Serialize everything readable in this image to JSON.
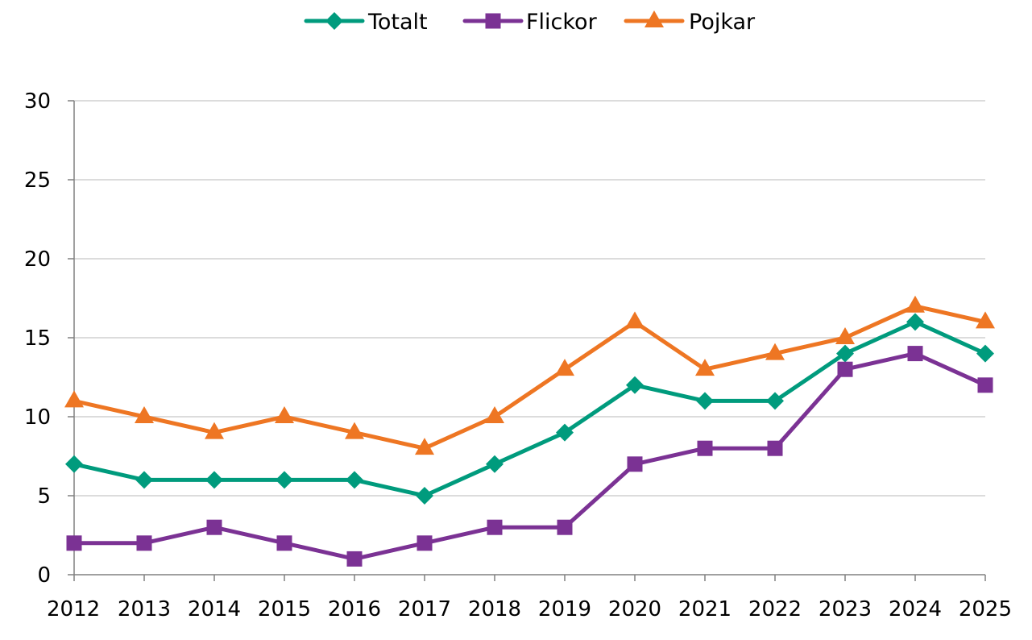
{
  "chart_data": {
    "type": "line",
    "title": "",
    "xlabel": "",
    "ylabel": "",
    "categories": [
      "2012",
      "2013",
      "2014",
      "2015",
      "2016",
      "2017",
      "2018",
      "2019",
      "2020",
      "2021",
      "2022",
      "2023",
      "2024",
      "2025"
    ],
    "ylim": [
      0,
      30
    ],
    "y_ticks": [
      0,
      5,
      10,
      15,
      20,
      25,
      30
    ],
    "grid": "horizontal",
    "legend_position": "top-center",
    "series": [
      {
        "name": "Totalt",
        "color": "#009B7D",
        "marker": "diamond",
        "values": [
          7,
          6,
          6,
          6,
          6,
          5,
          7,
          9,
          12,
          11,
          11,
          14,
          16,
          14
        ]
      },
      {
        "name": "Flickor",
        "color": "#7B3294",
        "marker": "square",
        "values": [
          2,
          2,
          3,
          2,
          1,
          2,
          3,
          3,
          7,
          8,
          8,
          13,
          14,
          12
        ]
      },
      {
        "name": "Pojkar",
        "color": "#EE7623",
        "marker": "triangle",
        "values": [
          11,
          10,
          9,
          10,
          9,
          8,
          10,
          13,
          16,
          13,
          14,
          15,
          17,
          16
        ]
      }
    ]
  }
}
